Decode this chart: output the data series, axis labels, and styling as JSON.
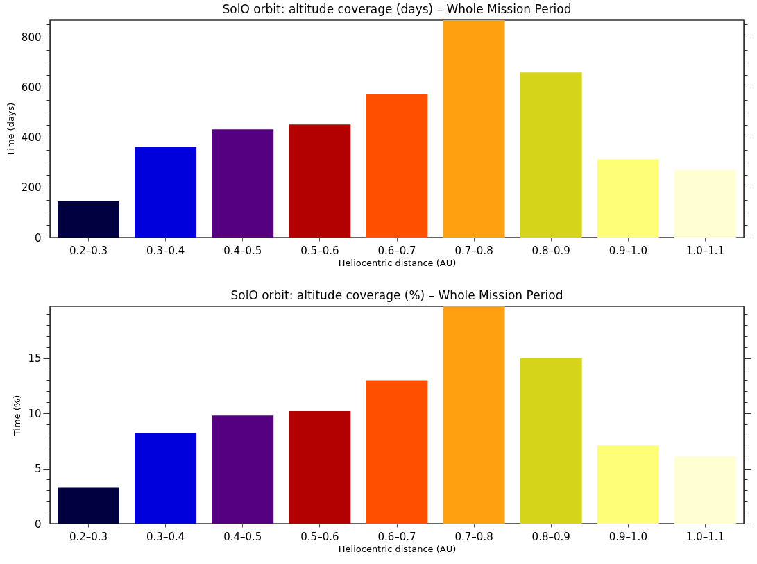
{
  "chart_data": [
    {
      "type": "bar",
      "title": "SolO orbit: altitude coverage (days) – Whole Mission Period",
      "xlabel": "Heliocentric distance (AU)",
      "ylabel": "Time (days)",
      "categories": [
        "0.2–0.3",
        "0.3–0.4",
        "0.4–0.5",
        "0.5–0.6",
        "0.6–0.7",
        "0.7–0.8",
        "0.8–0.9",
        "0.9–1.0",
        "1.0–1.1"
      ],
      "values": [
        144,
        362,
        432,
        451,
        571,
        868,
        659,
        312,
        270
      ],
      "colors": [
        "#000040",
        "#0000dd",
        "#550080",
        "#b30000",
        "#ff5000",
        "#ffa010",
        "#d6d41a",
        "#ffff77",
        "#ffffd2"
      ],
      "ylim": [
        0,
        868
      ],
      "yticks": [
        0,
        {
          "value": 50,
          "label": null
        },
        {
          "value": 100,
          "label": null
        },
        {
          "value": 150,
          "label": null
        },
        200,
        {
          "value": 250,
          "label": null
        },
        {
          "value": 300,
          "label": null
        },
        {
          "value": 350,
          "label": null
        },
        400,
        {
          "value": 450,
          "label": null
        },
        {
          "value": 500,
          "label": null
        },
        {
          "value": 550,
          "label": null
        },
        600,
        {
          "value": 650,
          "label": null
        },
        {
          "value": 700,
          "label": null
        },
        {
          "value": 750,
          "label": null
        },
        800,
        {
          "value": 850,
          "label": null
        }
      ]
    },
    {
      "type": "bar",
      "title": "SolO orbit: altitude coverage (%) – Whole Mission Period",
      "xlabel": "Heliocentric distance (AU)",
      "ylabel": "Time (%)",
      "categories": [
        "0.2–0.3",
        "0.3–0.4",
        "0.4–0.5",
        "0.5–0.6",
        "0.6–0.7",
        "0.7–0.8",
        "0.8–0.9",
        "0.9–1.0",
        "1.0–1.1"
      ],
      "values": [
        3.3,
        8.2,
        9.8,
        10.2,
        13.0,
        19.7,
        15.0,
        7.1,
        6.1
      ],
      "colors": [
        "#000040",
        "#0000dd",
        "#550080",
        "#b30000",
        "#ff5000",
        "#ffa010",
        "#d6d41a",
        "#ffff77",
        "#ffffd2"
      ],
      "ylim": [
        0,
        19.7
      ],
      "yticks": [
        0,
        {
          "value": 1,
          "label": null
        },
        {
          "value": 2,
          "label": null
        },
        {
          "value": 3,
          "label": null
        },
        {
          "value": 4,
          "label": null
        },
        5,
        {
          "value": 6,
          "label": null
        },
        {
          "value": 7,
          "label": null
        },
        {
          "value": 8,
          "label": null
        },
        {
          "value": 9,
          "label": null
        },
        10,
        {
          "value": 11,
          "label": null
        },
        {
          "value": 12,
          "label": null
        },
        {
          "value": 13,
          "label": null
        },
        {
          "value": 14,
          "label": null
        },
        15,
        {
          "value": 16,
          "label": null
        },
        {
          "value": 17,
          "label": null
        },
        {
          "value": 18,
          "label": null
        },
        {
          "value": 19,
          "label": null
        }
      ]
    }
  ]
}
